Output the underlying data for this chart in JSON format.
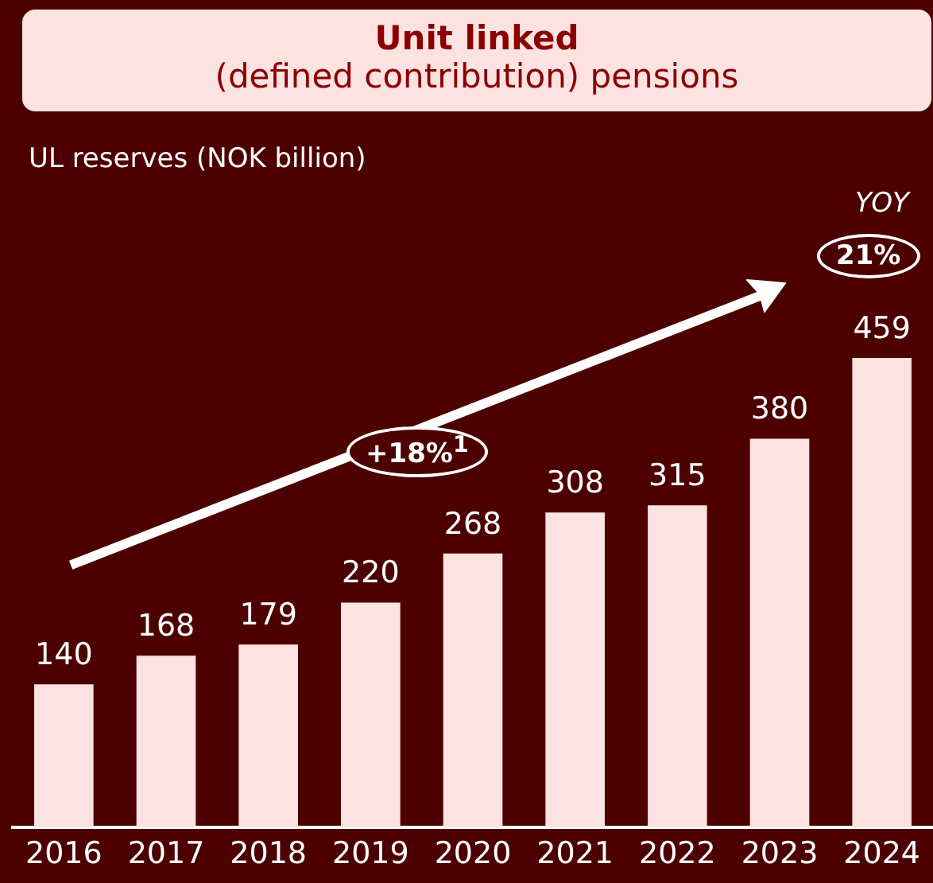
{
  "chart_data": {
    "type": "bar",
    "title": "Unit linked",
    "subtitle": "(defined contribution) pensions",
    "categories": [
      "2016",
      "2017",
      "2018",
      "2019",
      "2020",
      "2021",
      "2022",
      "2023",
      "2024"
    ],
    "values": [
      140,
      168,
      179,
      220,
      268,
      308,
      315,
      380,
      459
    ],
    "color": "#fde2e2",
    "data_labels": true,
    "grid": false,
    "legend": false,
    "annotations": [
      "UL reserves (NOK billion)",
      "+18%$^{1}$",
      "YOY",
      "21%"
    ]
  }
}
